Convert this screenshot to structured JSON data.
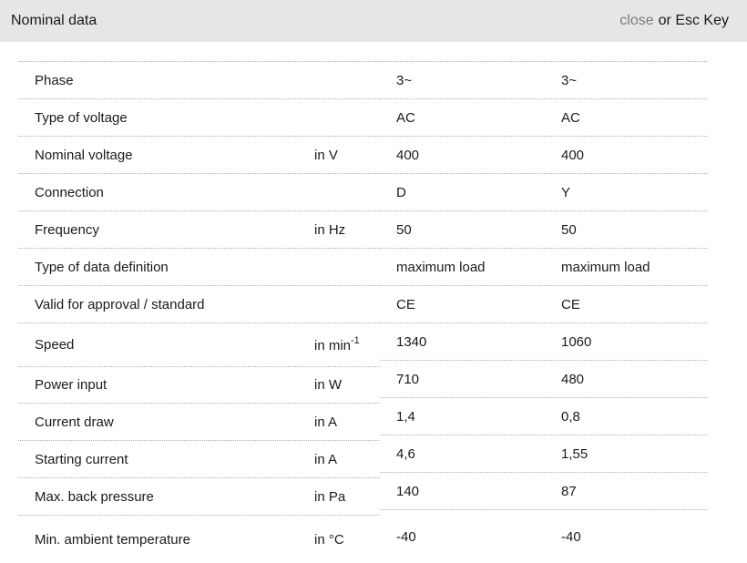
{
  "header": {
    "title": "Nominal data",
    "close_label": "close",
    "close_suffix": "or Esc Key"
  },
  "colors": {
    "header_bg": "#e6e6e6",
    "close_link": "#7d7d7d",
    "text": "#1a1a1a",
    "divider": "#a9b0b3"
  },
  "table": {
    "rows": [
      {
        "label": "Phase",
        "unit": "",
        "v1": "3~",
        "v2": "3~"
      },
      {
        "label": "Type of voltage",
        "unit": "",
        "v1": "AC",
        "v2": "AC"
      },
      {
        "label": "Nominal voltage",
        "unit": "in V",
        "v1": "400",
        "v2": "400"
      },
      {
        "label": "Connection",
        "unit": "",
        "v1": "D",
        "v2": "Y"
      },
      {
        "label": "Frequency",
        "unit": "in Hz",
        "v1": "50",
        "v2": "50"
      },
      {
        "label": "Type of data definition",
        "unit": "",
        "v1": "maximum load",
        "v2": "maximum load"
      },
      {
        "label": "Valid for approval / standard",
        "unit": "",
        "v1": "CE",
        "v2": "CE"
      },
      {
        "label": "Speed",
        "unit": "in min",
        "unit_sup": "-1",
        "v1": "1340",
        "v2": "1060"
      },
      {
        "label": "Power input",
        "unit": "in W",
        "v1": "710",
        "v2": "480"
      },
      {
        "label": "Current draw",
        "unit": "in A",
        "v1": "1,4",
        "v2": "0,8"
      },
      {
        "label": "Starting current",
        "unit": "in A",
        "v1": "4,6",
        "v2": "1,55"
      },
      {
        "label": "Max. back pressure",
        "unit": "in Pa",
        "v1": "140",
        "v2": "87"
      },
      {
        "label": "Min. ambient temperature",
        "unit": "in °C",
        "v1": "-40",
        "v2": "-40"
      }
    ]
  }
}
